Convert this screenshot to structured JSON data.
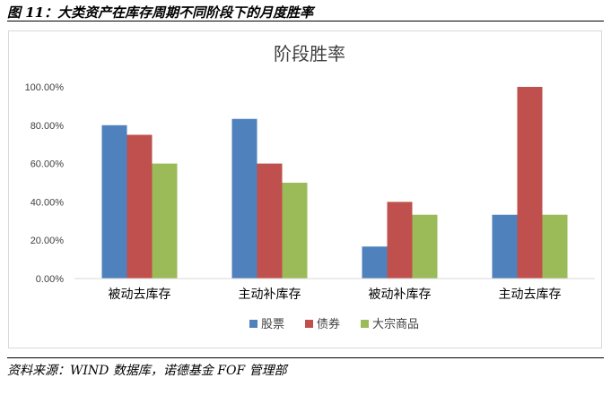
{
  "figure": {
    "caption": "图 11：大类资产在库存周期不同阶段下的月度胜率",
    "source": "资料来源：WIND 数据库，诺德基金 FOF 管理部"
  },
  "chart_data": {
    "type": "bar",
    "title": "阶段胜率",
    "xlabel": "",
    "ylabel": "",
    "categories": [
      "被动去库存",
      "主动补库存",
      "被动补库存",
      "主动去库存"
    ],
    "series": [
      {
        "name": "股票",
        "color": "#4f81bd",
        "values": [
          80,
          83.3,
          16.7,
          33.3
        ]
      },
      {
        "name": "债券",
        "color": "#c0504d",
        "values": [
          75,
          60,
          40,
          100
        ]
      },
      {
        "name": "大宗商品",
        "color": "#9bbb59",
        "values": [
          60,
          50,
          33.3,
          33.3
        ]
      }
    ],
    "ylim": [
      0,
      100
    ],
    "yticks": [
      0,
      20,
      40,
      60,
      80,
      100
    ],
    "ytick_labels": [
      "0.00%",
      "20.00%",
      "40.00%",
      "60.00%",
      "80.00%",
      "100.00%"
    ],
    "grid": false,
    "legend_position": "bottom"
  }
}
